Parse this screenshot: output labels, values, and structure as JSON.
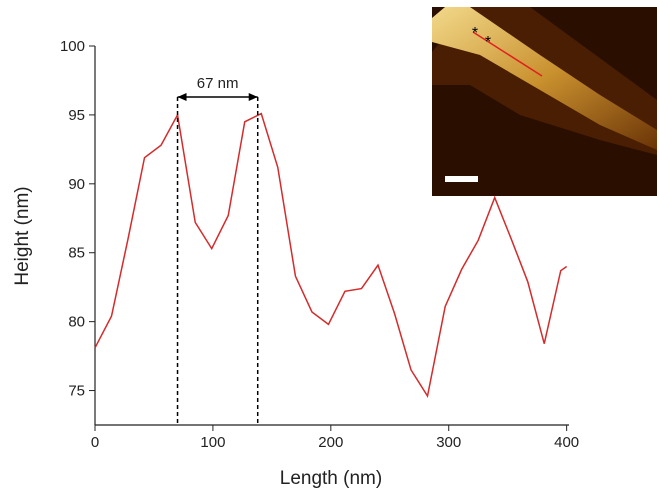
{
  "chart_data": {
    "type": "line",
    "x_label": "Length (nm)",
    "y_label": "Height (nm)",
    "x": [
      0,
      14,
      28,
      42,
      56,
      70,
      85,
      99,
      113,
      127,
      141,
      155,
      170,
      184,
      198,
      212,
      226,
      240,
      254,
      268,
      282,
      297,
      311,
      325,
      339,
      353,
      367,
      381,
      395,
      400
    ],
    "series": [
      {
        "color": "#d42b2b",
        "values": [
          78.1,
          80.4,
          86,
          91.9,
          92.8,
          95.0,
          87.2,
          85.3,
          87.7,
          94.5,
          95.1,
          91.2,
          83.3,
          80.7,
          79.8,
          82.2,
          82.4,
          84.1,
          80.6,
          76.5,
          74.6,
          81.1,
          83.8,
          85.9,
          89.0,
          86.0,
          82.9,
          78.4,
          83.7,
          84.0
        ]
      }
    ],
    "xlim": [
      0,
      402
    ],
    "ylim": [
      72.5,
      100
    ],
    "xticks": [
      0,
      100,
      200,
      300,
      400
    ],
    "yticks": [
      75,
      80,
      85,
      90,
      95,
      100
    ],
    "annotation": {
      "text": "67 nm",
      "x": [
        70,
        138
      ],
      "y": 96.3
    },
    "inset_markers": [
      "*",
      "*"
    ]
  }
}
